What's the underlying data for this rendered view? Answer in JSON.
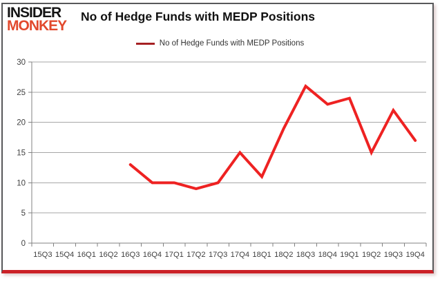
{
  "logo": {
    "line1": "INSIDER",
    "line2": "MONKEY"
  },
  "title": "No of Hedge Funds with MEDP Positions",
  "legend": {
    "label": "No of Hedge Funds with MEDP Positions"
  },
  "colors": {
    "series_line": "#ee2222",
    "legend_marker": "#a52023",
    "gridline": "#a6a6a6",
    "axis": "#808080",
    "tick_label": "#404040",
    "logo_black": "#141414",
    "logo_red": "#e2492d",
    "frame_border": "#57585a",
    "bottom_bar": "#cb2127"
  },
  "chart_data": {
    "type": "line",
    "title": "No of Hedge Funds with MEDP Positions",
    "categories": [
      "15Q3",
      "15Q4",
      "16Q1",
      "16Q2",
      "16Q3",
      "16Q4",
      "17Q1",
      "17Q2",
      "17Q3",
      "17Q4",
      "18Q1",
      "18Q2",
      "18Q3",
      "18Q4",
      "19Q1",
      "19Q2",
      "19Q3",
      "19Q4"
    ],
    "series": [
      {
        "name": "No of Hedge Funds with MEDP Positions",
        "color": "#ee2222",
        "values": [
          null,
          null,
          null,
          null,
          13,
          10,
          10,
          9,
          10,
          15,
          11,
          19,
          26,
          23,
          24,
          15,
          22,
          17
        ]
      }
    ],
    "xlabel": "",
    "ylabel": "",
    "ylim": [
      0,
      30
    ],
    "yticks": [
      0,
      5,
      10,
      15,
      20,
      25,
      30
    ],
    "grid": "horizontal",
    "legend_position": "top-center"
  }
}
